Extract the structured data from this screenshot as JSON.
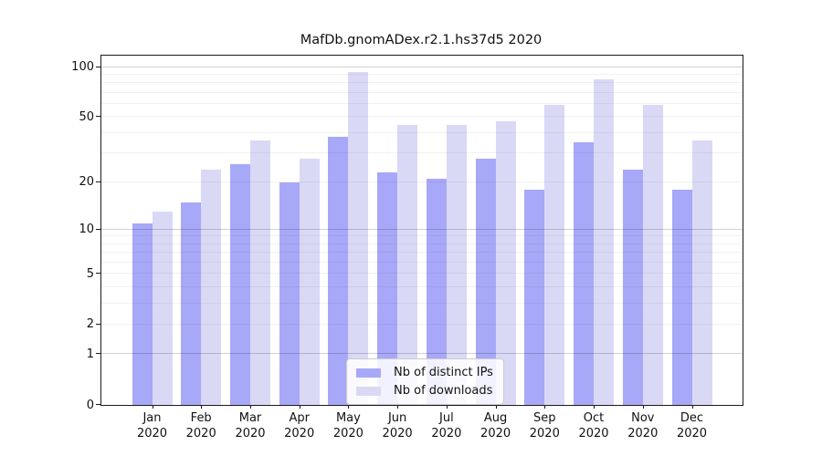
{
  "chart_data": {
    "type": "bar",
    "title": "MafDb.gnomADex.r2.1.hs37d5 2020",
    "categories": [
      "Jan",
      "Feb",
      "Mar",
      "Apr",
      "May",
      "Jun",
      "Jul",
      "Aug",
      "Sep",
      "Oct",
      "Nov",
      "Dec"
    ],
    "category_year": "2020",
    "series": [
      {
        "name": "Nb of distinct IPs",
        "color": "#a8a8f8",
        "values": [
          11,
          15,
          26,
          20,
          38,
          23,
          21,
          28,
          18,
          35,
          24,
          18
        ]
      },
      {
        "name": "Nb of downloads",
        "color": "#d9d9f6",
        "values": [
          13,
          24,
          36,
          28,
          94,
          45,
          45,
          47,
          59,
          85,
          59,
          36
        ]
      }
    ],
    "y_axis": {
      "scale": "log1p",
      "ticks": [
        0,
        1,
        2,
        5,
        10,
        20,
        50,
        100
      ],
      "major_gridlines": [
        1,
        10,
        100
      ],
      "minor_gridlines": [
        2,
        3,
        4,
        5,
        6,
        7,
        8,
        9,
        20,
        30,
        40,
        50,
        60,
        70,
        80,
        90
      ],
      "ylim": [
        0,
        110
      ]
    },
    "legend": {
      "position": "lower-center",
      "entries": [
        "Nb of distinct IPs",
        "Nb of downloads"
      ]
    },
    "grid": true,
    "background_color": "#ffffff"
  }
}
